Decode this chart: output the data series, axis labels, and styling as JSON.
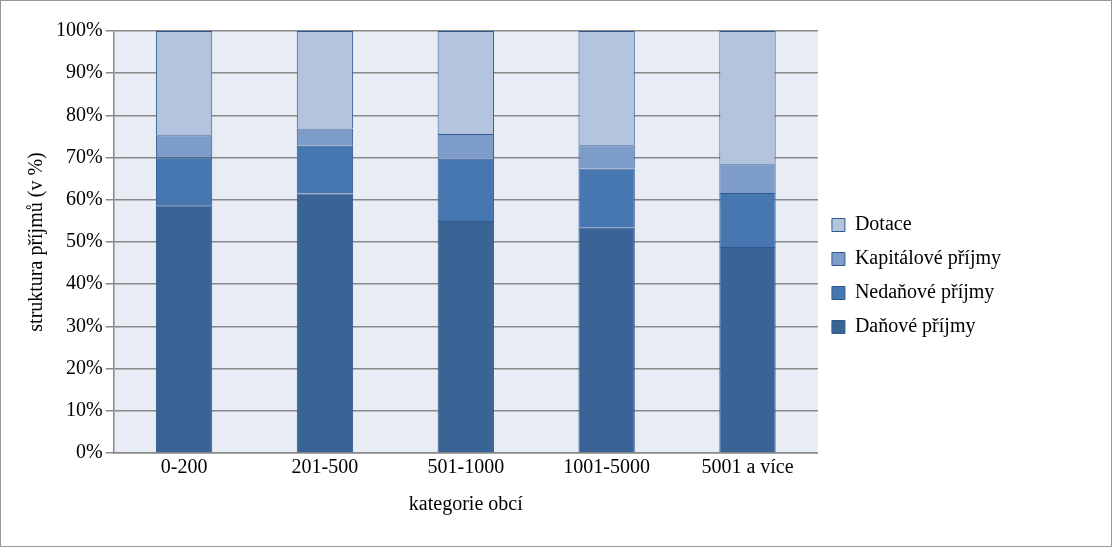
{
  "chart_data": {
    "type": "bar",
    "stacked": true,
    "xlabel": "kategorie obcí",
    "ylabel": "struktura příjmů (v %)",
    "categories": [
      "0-200",
      "201-500",
      "501-1000",
      "1001-5000",
      "5001 a více"
    ],
    "series": [
      {
        "name": "Daňové příjmy",
        "color": "#3a6496",
        "values": [
          58.7,
          61.5,
          55.0,
          53.4,
          48.8
        ]
      },
      {
        "name": "Nedaňové příjmy",
        "color": "#4777b0",
        "values": [
          11.4,
          11.3,
          14.7,
          14.0,
          12.8
        ]
      },
      {
        "name": "Kapitálové příjmy",
        "color": "#7e9cc9",
        "values": [
          5.2,
          4.1,
          5.9,
          5.5,
          6.8
        ]
      },
      {
        "name": "Dotace",
        "color": "#b4c3de",
        "values": [
          24.7,
          23.1,
          24.4,
          27.1,
          31.6
        ]
      }
    ],
    "ylim": [
      0,
      100
    ],
    "yticks": [
      {
        "value": 0,
        "label": "0%"
      },
      {
        "value": 10,
        "label": "10%"
      },
      {
        "value": 20,
        "label": "20%"
      },
      {
        "value": 30,
        "label": "30%"
      },
      {
        "value": 40,
        "label": "40%"
      },
      {
        "value": 50,
        "label": "50%"
      },
      {
        "value": 60,
        "label": "60%"
      },
      {
        "value": 70,
        "label": "70%"
      },
      {
        "value": 80,
        "label": "80%"
      },
      {
        "value": 90,
        "label": "90%"
      },
      {
        "value": 100,
        "label": "100%"
      }
    ],
    "grid": "y",
    "legend": "right"
  }
}
